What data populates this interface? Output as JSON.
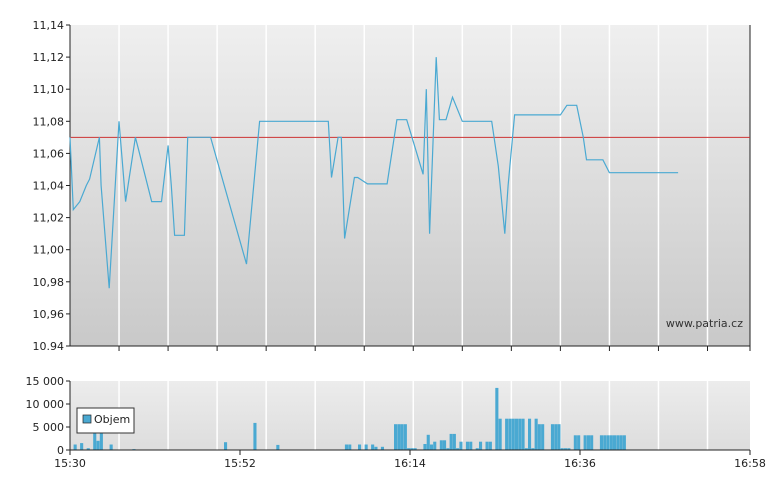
{
  "chart_data": [
    {
      "type": "line",
      "title": "",
      "xlabel": "",
      "ylabel": "",
      "y_ticks": [
        "11,14",
        "11,12",
        "11,10",
        "11,08",
        "11,06",
        "11,04",
        "11,02",
        "11,00",
        "10,98",
        "10,96",
        "10.94"
      ],
      "ylim": [
        10.94,
        11.14
      ],
      "xlim_minutes": [
        0,
        208
      ],
      "reference_line": {
        "value": 11.07,
        "color": "#cc3333"
      },
      "watermark": "www.patria.cz",
      "grid": true,
      "colors": {
        "line": "#4aa9d2",
        "plot_bg_top": "#efefef",
        "plot_bg_bottom": "#c9c9c9"
      },
      "series": [
        {
          "x_minutes": [
            0,
            1,
            3,
            5,
            6,
            9,
            9.5,
            12,
            15,
            17,
            20,
            21,
            25,
            28,
            30,
            31,
            32,
            35,
            36,
            41,
            43,
            54,
            58,
            60,
            67,
            78,
            79,
            80,
            82,
            83,
            84,
            87,
            88,
            91,
            94,
            95,
            97,
            100,
            103,
            108,
            109,
            110,
            112,
            113,
            115,
            117,
            120,
            125,
            128,
            129,
            131,
            133,
            134,
            136,
            138,
            145,
            150,
            152,
            155,
            157,
            158,
            160,
            163,
            165,
            167,
            170,
            175,
            177,
            179,
            183,
            186
          ],
          "values": [
            11.07,
            11.025,
            11.03,
            11.04,
            11.044,
            11.07,
            11.04,
            10.976,
            11.08,
            11.03,
            11.07,
            11.062,
            11.03,
            11.03,
            11.065,
            11.04,
            11.009,
            11.009,
            11.07,
            11.07,
            11.07,
            10.991,
            11.08,
            11.08,
            11.08,
            11.08,
            11.08,
            11.045,
            11.07,
            11.07,
            11.007,
            11.045,
            11.045,
            11.041,
            11.041,
            11.041,
            11.041,
            11.081,
            11.081,
            11.047,
            11.1,
            11.01,
            11.12,
            11.081,
            11.081,
            11.095,
            11.08,
            11.08,
            11.08,
            11.08,
            11.052,
            11.01,
            11.04,
            11.084,
            11.084,
            11.084,
            11.084,
            11.09,
            11.09,
            11.07,
            11.056,
            11.056,
            11.056,
            11.048,
            11.048,
            11.048,
            11.048,
            11.048,
            11.048,
            11.048,
            11.048
          ]
        }
      ]
    },
    {
      "type": "bar",
      "y_ticks": [
        "15 000",
        "10 000",
        "5 000",
        "0"
      ],
      "ylim": [
        0,
        15000
      ],
      "x_ticks": [
        "15:30",
        "15:52",
        "16:14",
        "16:36",
        "16:58"
      ],
      "legend": {
        "label": "Objem",
        "placement": "left"
      },
      "series": [
        {
          "name": "Objem",
          "x_minutes": [
            2,
            4,
            6,
            8,
            9,
            10,
            13,
            20,
            48,
            57,
            64,
            85,
            86,
            89,
            91,
            93,
            94,
            96,
            100,
            101,
            102,
            103,
            104,
            105,
            106,
            109,
            110,
            111,
            112,
            114,
            115,
            116,
            117,
            118,
            119,
            120,
            122,
            123,
            125,
            126,
            128,
            129,
            131,
            132,
            134,
            135,
            136,
            137,
            138,
            139,
            140,
            141,
            142,
            143,
            144,
            145,
            148,
            149,
            150,
            151,
            152,
            153,
            155,
            156,
            158,
            159,
            160,
            163,
            164,
            165,
            166,
            167,
            168,
            169,
            170
          ],
          "values": [
            1200,
            1500,
            400,
            8000,
            2000,
            3800,
            1200,
            200,
            1700,
            5900,
            1100,
            1200,
            1200,
            1200,
            1200,
            1200,
            700,
            700,
            5600,
            5600,
            5600,
            5600,
            400,
            400,
            400,
            1300,
            3300,
            1200,
            1800,
            2100,
            2100,
            400,
            3500,
            3500,
            400,
            1800,
            1800,
            1800,
            400,
            1800,
            1800,
            1800,
            13500,
            6800,
            6800,
            6800,
            6800,
            6800,
            6800,
            6800,
            400,
            6800,
            400,
            6800,
            5600,
            5600,
            5600,
            5600,
            5600,
            400,
            400,
            400,
            3200,
            3200,
            3200,
            3200,
            3200,
            3200,
            3200,
            3200,
            3200,
            3200,
            3200,
            3200,
            3200
          ],
          "color": "#4aa9d2"
        }
      ]
    }
  ]
}
